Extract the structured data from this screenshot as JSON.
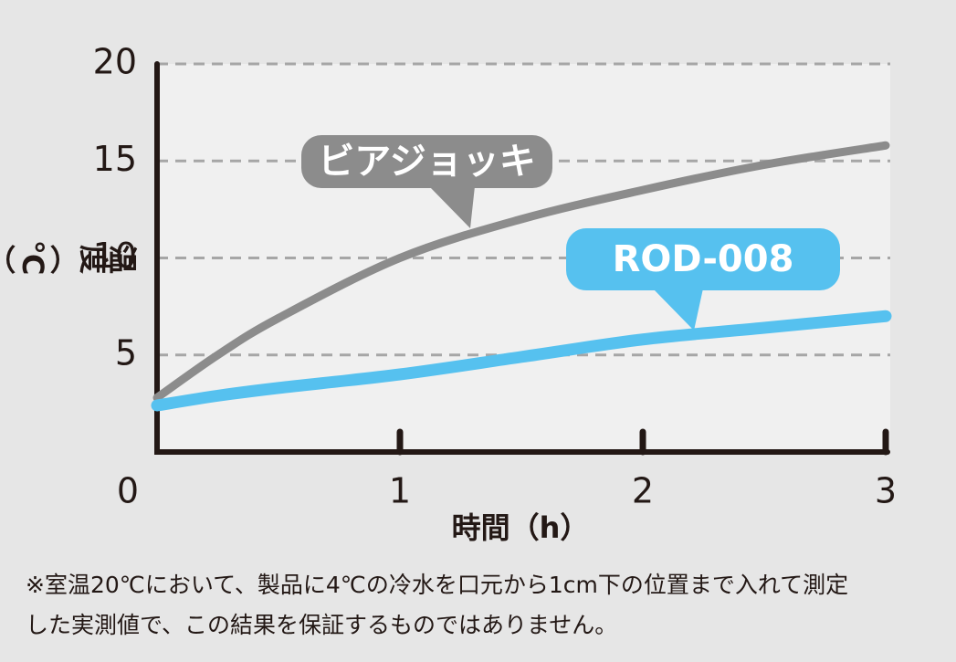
{
  "chart_data": {
    "type": "line",
    "y_label": "温度（℃）",
    "x_label": "時間（h）",
    "x": [
      0,
      0.25,
      0.5,
      1,
      1.5,
      2,
      2.5,
      3
    ],
    "series": [
      {
        "name": "ビアジョッキ",
        "color": "#8c8c8c",
        "values": [
          2.8,
          5,
          6.9,
          10,
          12,
          13.5,
          14.8,
          15.8
        ]
      },
      {
        "name": "ROD-008",
        "color": "#56c1ef",
        "values": [
          2.4,
          2.9,
          3.3,
          4.0,
          4.9,
          5.8,
          6.4,
          7.0
        ]
      }
    ],
    "xlim": [
      0,
      3
    ],
    "xticks": [
      0,
      1,
      2,
      3
    ],
    "ylim": [
      0,
      20
    ],
    "yticks": [
      0,
      5,
      10,
      15,
      20
    ],
    "grid": true,
    "note": [
      "※室温20℃において、製品に4℃の冷水を口元から1cm下の位置まで入れて測定",
      "した実測値で、この結果を保証するものではありません。"
    ]
  }
}
